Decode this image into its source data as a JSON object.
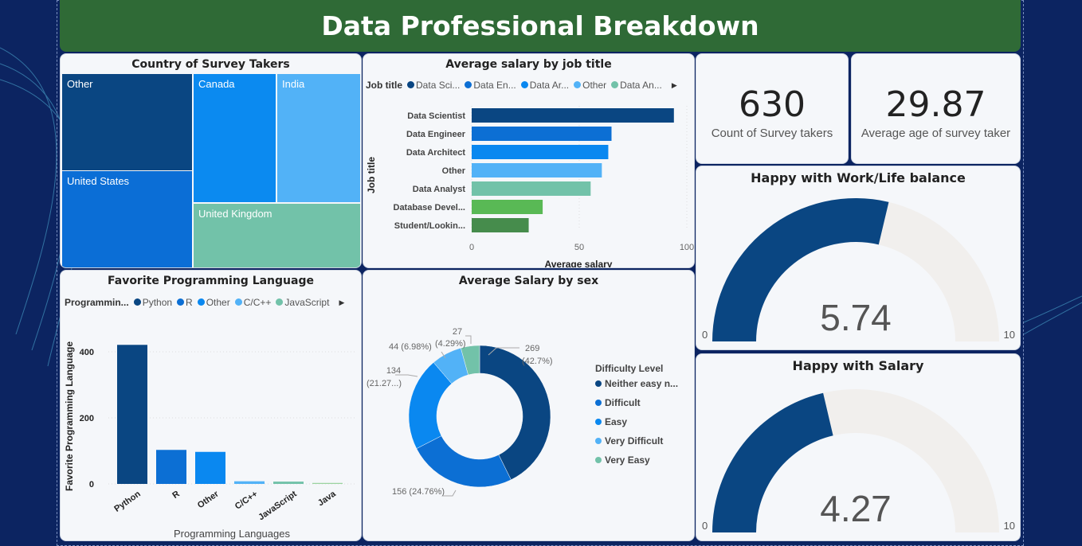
{
  "header": {
    "title": "Data Professional Breakdown"
  },
  "treemap": {
    "title": "Country of Survey Takers",
    "cells": [
      "Other",
      "United States",
      "Canada",
      "India",
      "United Kingdom"
    ],
    "colors": [
      "#0a4682",
      "#0b6ed6",
      "#0b8af0",
      "#52b2f7",
      "#72c2a9"
    ]
  },
  "chart_data": [
    {
      "type": "bar",
      "orientation": "horizontal",
      "title": "Average salary by job title",
      "legend_title": "Job title",
      "legend": [
        "Data Sci...",
        "Data En...",
        "Data Ar...",
        "Other",
        "Data An..."
      ],
      "categories": [
        "Data Scientist",
        "Data Engineer",
        "Data Architect",
        "Other",
        "Data Analyst",
        "Database Devel...",
        "Student/Lookin..."
      ],
      "values": [
        94,
        65,
        63.5,
        60.5,
        55.3,
        33,
        26.5
      ],
      "colors": [
        "#0a4682",
        "#0c6fd4",
        "#0a88f0",
        "#52b2f7",
        "#72c2a9",
        "#59b955",
        "#468c4c"
      ],
      "xlabel": "Average salary",
      "ylabel": "Job title",
      "xlim": [
        0,
        100
      ],
      "xticks": [
        "0",
        "50",
        "100"
      ]
    },
    {
      "type": "bar",
      "title": "Favorite Programming Language",
      "legend_title": "Programmin...",
      "legend": [
        "Python",
        "R",
        "Other",
        "C/C++",
        "JavaScript"
      ],
      "categories": [
        "Python",
        "R",
        "Other",
        "C/C++",
        "JavaScript",
        "Java"
      ],
      "values": [
        421,
        103,
        97,
        8,
        7,
        3
      ],
      "colors": [
        "#0a4682",
        "#0c6fd4",
        "#0a88f0",
        "#52b2f7",
        "#72c2a9",
        "#9bd3a0"
      ],
      "xlabel": "Programming Languages",
      "ylabel": "Favorite Programming Language",
      "ylim": [
        0,
        500
      ],
      "yticks": [
        "0",
        "200",
        "400"
      ]
    },
    {
      "type": "pie",
      "donut": true,
      "title": "Average Salary by sex",
      "legend_title": "Difficulty Level",
      "categories": [
        "Neither easy n...",
        "Difficult",
        "Easy",
        "Very Difficult",
        "Very Easy"
      ],
      "values": [
        269,
        156,
        134,
        44,
        27
      ],
      "labels": [
        "269",
        "(42.7%)",
        "156 (24.76%)",
        "134",
        "(21.27...)",
        "44 (6.98%)",
        "27",
        "(4.29%)"
      ],
      "colors": [
        "#0a4682",
        "#0c6fd4",
        "#0a88f0",
        "#52b2f7",
        "#72c2a9"
      ]
    }
  ],
  "kpis": [
    {
      "value": "630",
      "label": "Count of Survey takers"
    },
    {
      "value": "29.87",
      "label": "Average age of survey taker"
    }
  ],
  "gauges": [
    {
      "title": "Happy with Work/Life balance",
      "value": 5.74,
      "display": "5.74",
      "min": "0",
      "max": "10"
    },
    {
      "title": "Happy with Salary",
      "value": 4.27,
      "display": "4.27",
      "min": "0",
      "max": "10"
    }
  ],
  "gauge_colors": {
    "fill": "#0a4682",
    "track": "#f1efed"
  },
  "legend_more_icon": "caret-right-icon"
}
